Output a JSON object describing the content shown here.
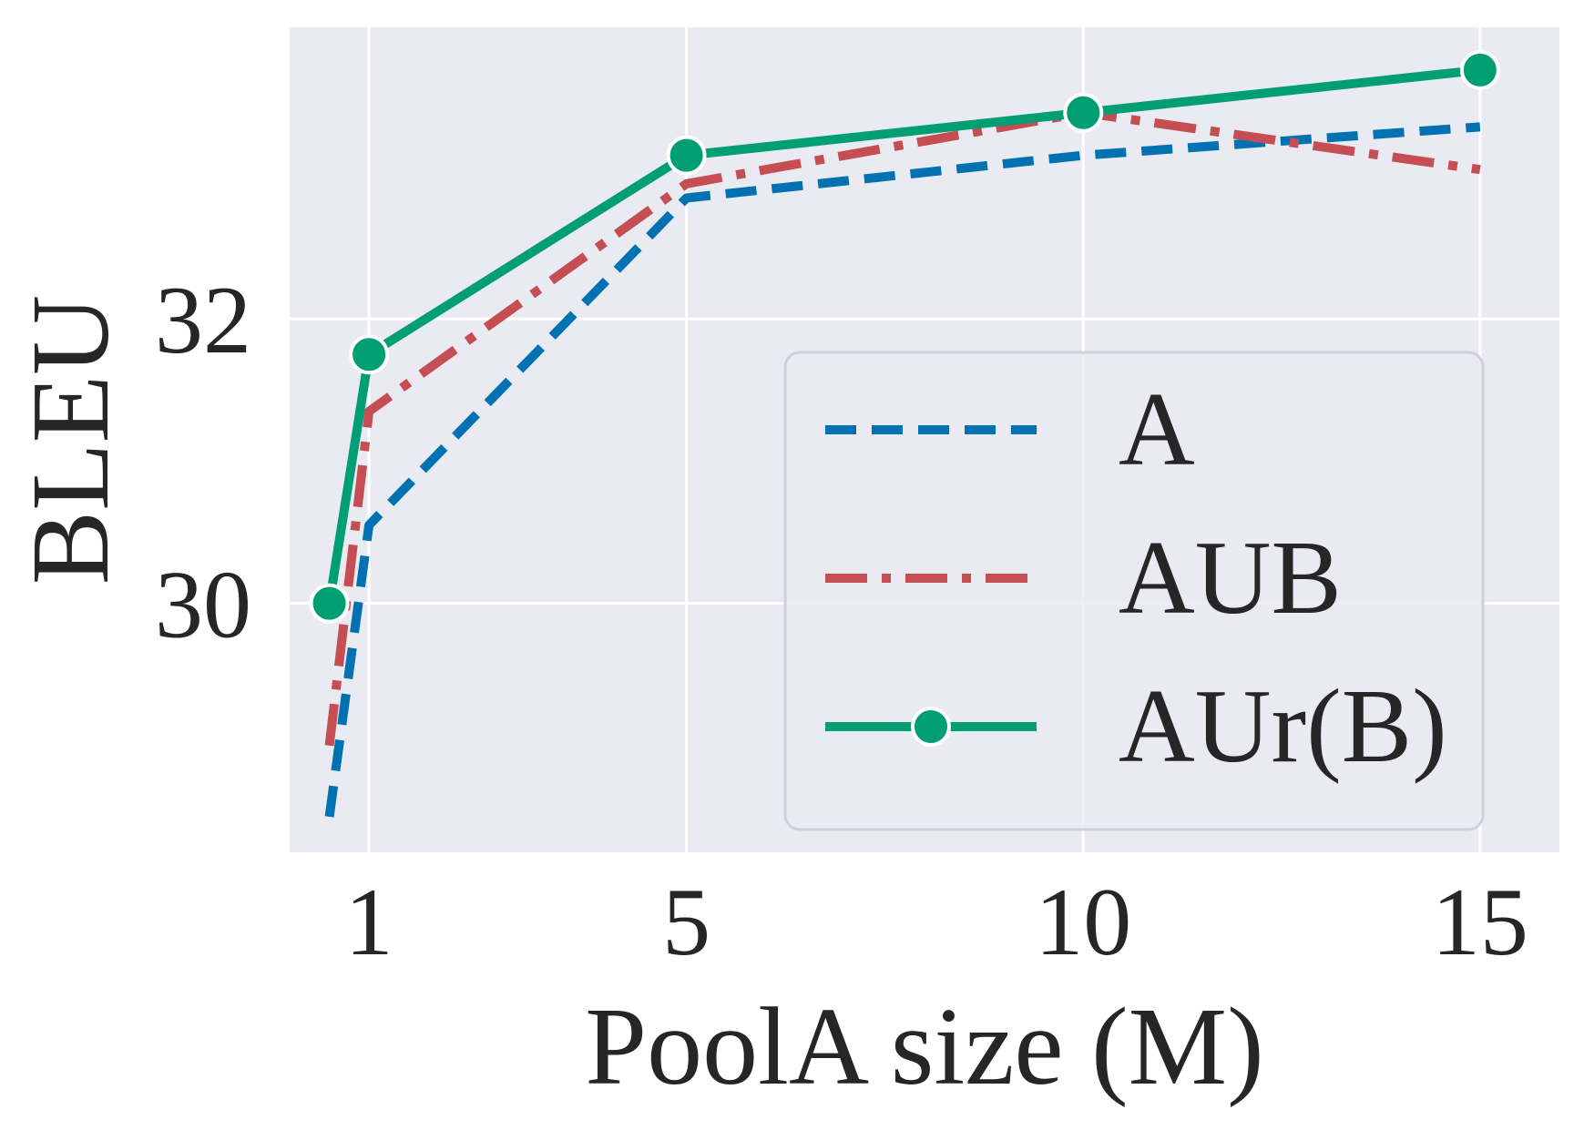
{
  "chart_data": {
    "type": "line",
    "xlabel": "PoolA size (M)",
    "ylabel": "BLEU",
    "xlim": [
      0.0,
      16.0
    ],
    "ylim": [
      28.25,
      34.05
    ],
    "xticks": [
      1,
      5,
      10,
      15
    ],
    "xtick_labels": [
      "1",
      "5",
      "10",
      "15"
    ],
    "yticks": [
      30,
      32
    ],
    "ytick_labels": [
      "30",
      "32"
    ],
    "grid": true,
    "legend_position": "lower-right",
    "background_color": "#eaeaf2",
    "grid_color": "#ffffff",
    "series": [
      {
        "name": "A",
        "color": "#0072b2",
        "style": "dashed",
        "marker": "none",
        "x": [
          0.5,
          1,
          5,
          10,
          15
        ],
        "y": [
          28.5,
          30.55,
          32.85,
          33.15,
          33.35
        ]
      },
      {
        "name": "AUB",
        "color": "#c44e52",
        "style": "dashdot",
        "marker": "none",
        "x": [
          0.5,
          1,
          5,
          10,
          15
        ],
        "y": [
          29.0,
          31.35,
          32.95,
          33.45,
          33.05
        ]
      },
      {
        "name": "AUr(B)",
        "color": "#009e73",
        "style": "solid",
        "marker": "circle",
        "x": [
          0.5,
          1,
          5,
          10,
          15
        ],
        "y": [
          30.0,
          31.75,
          33.15,
          33.45,
          33.75
        ]
      }
    ]
  }
}
